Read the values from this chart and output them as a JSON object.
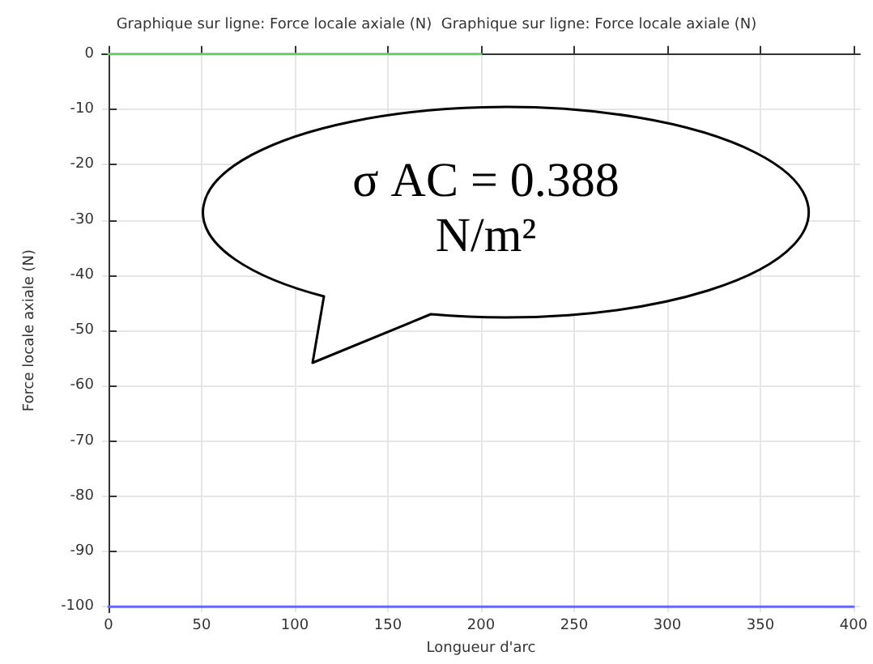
{
  "chart_data": {
    "type": "line",
    "title": "Graphique sur ligne: Force locale axiale (N)  Graphique sur ligne: Force locale axiale (N)",
    "xlabel": "Longueur d'arc",
    "ylabel": "Force locale axiale (N)",
    "series": [
      {
        "color": "#66cc66",
        "x": [
          0,
          200
        ],
        "values": [
          0,
          0
        ]
      },
      {
        "color": "#6666ff",
        "x": [
          0,
          400
        ],
        "values": [
          -100,
          -100
        ]
      }
    ],
    "xlim": [
      -3.5,
      403.5
    ],
    "xticks": [
      0,
      50,
      100,
      150,
      200,
      250,
      300,
      350,
      400
    ],
    "ylim": [
      -101,
      1
    ],
    "yticks": [
      0,
      -10,
      -20,
      -30,
      -40,
      -50,
      -60,
      -70,
      -80,
      -90,
      -100
    ],
    "grid": true,
    "marker": "none",
    "line_style": "solid",
    "annotations": [
      "σ AC = 0.388 N/m²"
    ]
  }
}
